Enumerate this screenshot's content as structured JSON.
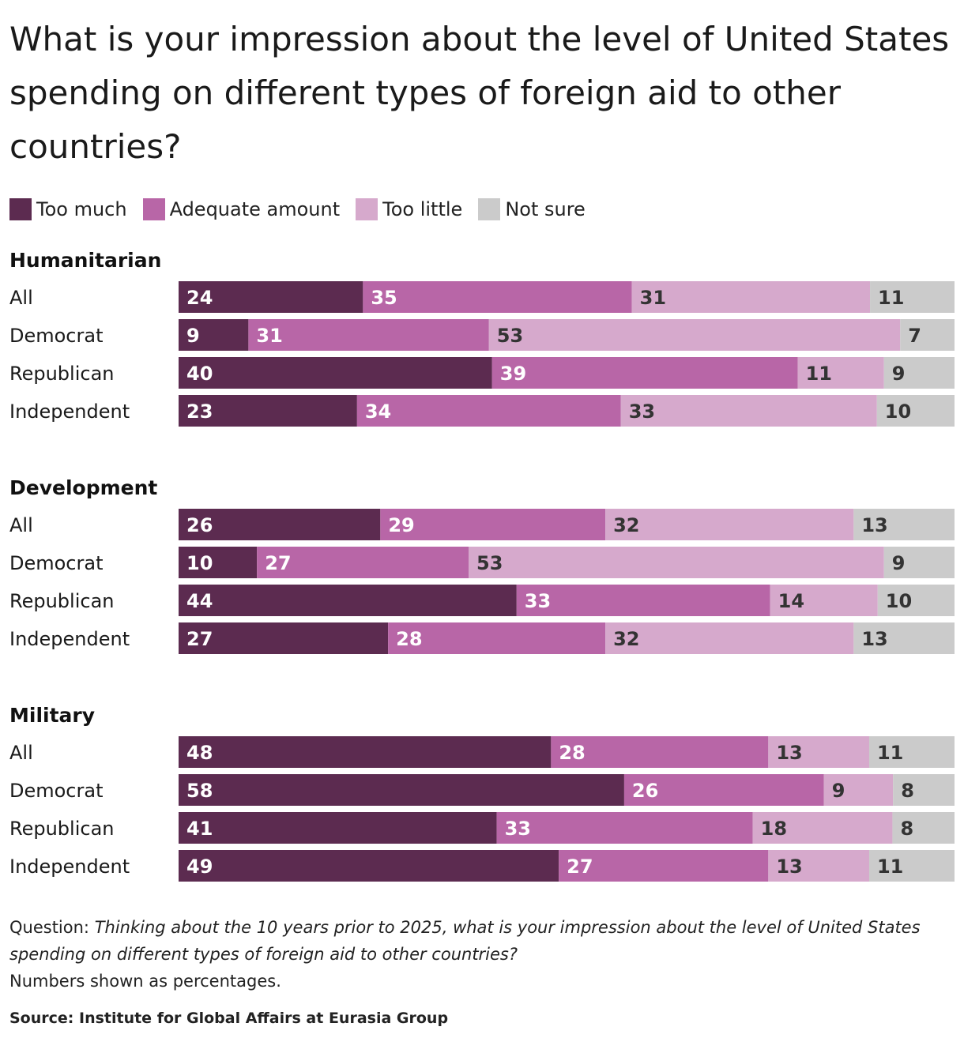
{
  "title": "What is your impression about the level of United States spending on different types of foreign aid to other countries?",
  "question_prefix": "Question:",
  "question_text": "Thinking about the 10 years prior to 2025, what is your impression about the level of United States spending on different types of foreign aid to other countries?",
  "note": "Numbers shown as percentages.",
  "source": "Source: Institute for Global Affairs at Eurasia Group",
  "chart_data": {
    "type": "bar",
    "orientation": "horizontal",
    "stacked": true,
    "legend_position": "top-left",
    "series_names": [
      "Too much",
      "Adequate amount",
      "Too little",
      "Not sure"
    ],
    "colors": [
      "#5c2b50",
      "#b866a7",
      "#d6a9cc",
      "#cbcbcb"
    ],
    "label_colors": [
      "#ffffff",
      "#ffffff",
      "#333333",
      "#333333"
    ],
    "groups": [
      {
        "name": "Humanitarian",
        "rows": [
          {
            "label": "All",
            "values": [
              24,
              35,
              31,
              11
            ]
          },
          {
            "label": "Democrat",
            "values": [
              9,
              31,
              53,
              7
            ]
          },
          {
            "label": "Republican",
            "values": [
              40,
              39,
              11,
              9
            ]
          },
          {
            "label": "Independent",
            "values": [
              23,
              34,
              33,
              10
            ]
          }
        ]
      },
      {
        "name": "Development",
        "rows": [
          {
            "label": "All",
            "values": [
              26,
              29,
              32,
              13
            ]
          },
          {
            "label": "Democrat",
            "values": [
              10,
              27,
              53,
              9
            ]
          },
          {
            "label": "Republican",
            "values": [
              44,
              33,
              14,
              10
            ]
          },
          {
            "label": "Independent",
            "values": [
              27,
              28,
              32,
              13
            ]
          }
        ]
      },
      {
        "name": "Military",
        "rows": [
          {
            "label": "All",
            "values": [
              48,
              28,
              13,
              11
            ]
          },
          {
            "label": "Democrat",
            "values": [
              58,
              26,
              9,
              8
            ]
          },
          {
            "label": "Republican",
            "values": [
              41,
              33,
              18,
              8
            ]
          },
          {
            "label": "Independent",
            "values": [
              49,
              27,
              13,
              11
            ]
          }
        ]
      }
    ]
  }
}
